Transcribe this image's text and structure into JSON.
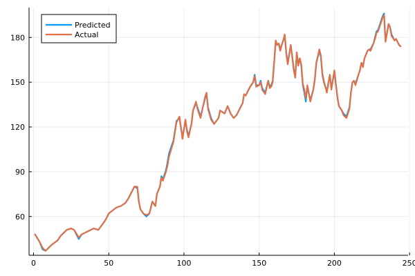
{
  "chart_data": {
    "type": "line",
    "title": "",
    "xlabel": "",
    "ylabel": "",
    "xlim": [
      -3,
      249
    ],
    "ylim": [
      34,
      200
    ],
    "x_ticks": [
      0,
      50,
      100,
      150,
      200,
      250
    ],
    "y_ticks": [
      60,
      90,
      120,
      150,
      180
    ],
    "grid": true,
    "legend_position": "top-left",
    "anchors_x": [
      1,
      4,
      6,
      8,
      12,
      16,
      18,
      20,
      22,
      25,
      27,
      30,
      32,
      34,
      36,
      40,
      43,
      46,
      48,
      50,
      55,
      58,
      61,
      63,
      64,
      66,
      67,
      69,
      70,
      71,
      73,
      75,
      77,
      79,
      81,
      82,
      84,
      85,
      86,
      88,
      89,
      90,
      93,
      95,
      97,
      99,
      101,
      102,
      103,
      105,
      106,
      108,
      109,
      111,
      114,
      115,
      116,
      118,
      120,
      123,
      124,
      127,
      129,
      131,
      133,
      135,
      137,
      139,
      140,
      141,
      142,
      144,
      146,
      147,
      148,
      150,
      151,
      152,
      154,
      156,
      157,
      158,
      159,
      161,
      162,
      163,
      164,
      165,
      166,
      167,
      168,
      169,
      171,
      173,
      174,
      175,
      176,
      177,
      178,
      179,
      180,
      181,
      182,
      184,
      186,
      187,
      188,
      190,
      191,
      192,
      193,
      195,
      197,
      198,
      200,
      202,
      203,
      205,
      206,
      208,
      210,
      211,
      212,
      213,
      214,
      216,
      217,
      218,
      219,
      220,
      222,
      223,
      224,
      226,
      227,
      228,
      229,
      230,
      231,
      232,
      233,
      234,
      235,
      236,
      237,
      238,
      240,
      241,
      242,
      243,
      244
    ],
    "actual_y": [
      48,
      43,
      39,
      37,
      41,
      44,
      47,
      49,
      51,
      52,
      51,
      46,
      48,
      49,
      50,
      52,
      51,
      55,
      58,
      62,
      66,
      67,
      69,
      72,
      74,
      78,
      80,
      80,
      70,
      65,
      62,
      61,
      62,
      70,
      67,
      75,
      80,
      86,
      84,
      90,
      94,
      100,
      110,
      123,
      127,
      112,
      125,
      117,
      113,
      122,
      131,
      137,
      132,
      126,
      140,
      143,
      132,
      125,
      122,
      126,
      131,
      129,
      134,
      129,
      126,
      128,
      132,
      136,
      142,
      141,
      143,
      147,
      150,
      154,
      147,
      148,
      150,
      145,
      142,
      151,
      146,
      147,
      150,
      178,
      175,
      176,
      171,
      175,
      178,
      182,
      169,
      162,
      175,
      158,
      153,
      170,
      161,
      166,
      162,
      149,
      145,
      139,
      148,
      137,
      145,
      152,
      163,
      172,
      168,
      156,
      151,
      143,
      155,
      145,
      158,
      140,
      134,
      131,
      128,
      126,
      132,
      143,
      150,
      151,
      148,
      155,
      158,
      163,
      160,
      166,
      171,
      172,
      171,
      176,
      179,
      183,
      184,
      187,
      190,
      193,
      195,
      177,
      183,
      189,
      187,
      181,
      178,
      179,
      177,
      175,
      174
    ],
    "predicted_y": [
      48,
      43,
      38,
      37,
      41,
      44,
      47,
      49,
      51,
      52,
      51,
      45,
      48,
      49,
      50,
      52,
      51,
      55,
      58,
      62,
      66,
      67,
      69,
      72,
      74,
      78,
      80,
      79,
      70,
      65,
      62,
      60,
      62,
      70,
      67,
      75,
      80,
      87,
      85,
      91,
      96,
      102,
      111,
      124,
      126,
      113,
      124,
      118,
      114,
      122,
      131,
      136,
      133,
      127,
      139,
      142,
      133,
      126,
      122,
      126,
      131,
      129,
      134,
      129,
      126,
      128,
      132,
      136,
      142,
      141,
      143,
      147,
      150,
      155,
      148,
      148,
      151,
      146,
      143,
      151,
      147,
      148,
      151,
      177,
      175,
      176,
      172,
      175,
      178,
      181,
      170,
      163,
      175,
      159,
      154,
      169,
      162,
      166,
      161,
      148,
      143,
      137,
      147,
      138,
      145,
      152,
      163,
      171,
      167,
      155,
      150,
      144,
      155,
      146,
      157,
      140,
      134,
      131,
      129,
      127,
      133,
      143,
      150,
      151,
      149,
      155,
      158,
      163,
      161,
      166,
      171,
      172,
      172,
      176,
      180,
      184,
      185,
      188,
      191,
      194,
      196,
      178,
      183,
      189,
      187,
      182,
      178,
      179,
      177,
      175,
      174
    ],
    "series": [
      {
        "name": "Predicted",
        "color": "#009AFA"
      },
      {
        "name": "Actual",
        "color": "#E26F46"
      }
    ]
  }
}
